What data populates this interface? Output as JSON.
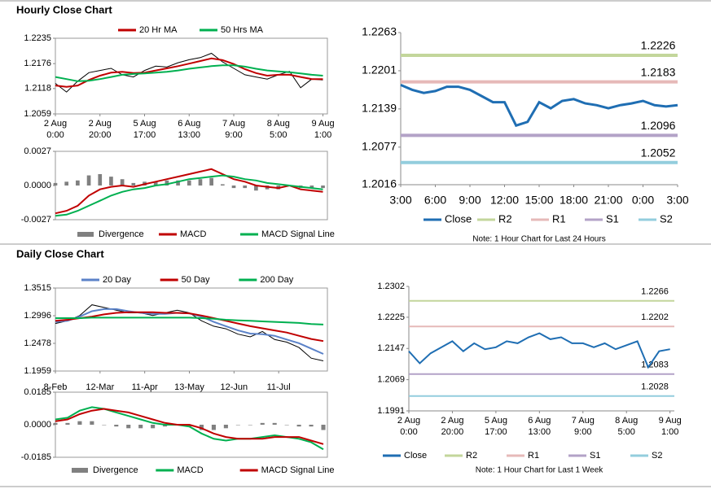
{
  "headings": [
    "Hourly Close Chart",
    "Daily Close Chart"
  ],
  "chart_data": [
    {
      "type": "line",
      "legend": "top",
      "x": [
        0,
        5,
        10,
        15,
        20,
        25,
        30,
        35,
        40,
        45,
        50,
        55,
        60,
        65,
        70,
        75,
        80,
        85,
        90,
        95,
        100,
        105,
        110,
        115,
        120
      ],
      "xlim": [
        0,
        122
      ],
      "ylim": [
        1.2059,
        1.2235
      ],
      "yticks": [
        1.2059,
        1.2118,
        1.2176,
        1.2235
      ],
      "xticks": [
        {
          "value": 0,
          "label": [
            "2 Aug",
            "0:00"
          ]
        },
        {
          "value": 20,
          "label": [
            "2 Aug",
            "20:00"
          ]
        },
        {
          "value": 40,
          "label": [
            "5 Aug",
            "17:00"
          ]
        },
        {
          "value": 60,
          "label": [
            "6 Aug",
            "13:00"
          ]
        },
        {
          "value": 80,
          "label": [
            "7 Aug",
            "9:00"
          ]
        },
        {
          "value": 100,
          "label": [
            "8 Aug",
            "5:00"
          ]
        },
        {
          "value": 120,
          "label": [
            "9 Aug",
            "1:00"
          ]
        }
      ],
      "series": [
        {
          "color": "#000000",
          "values": [
            1.213,
            1.211,
            1.2135,
            1.2155,
            1.216,
            1.2165,
            1.215,
            1.2145,
            1.216,
            1.217,
            1.2168,
            1.2178,
            1.2185,
            1.219,
            1.22,
            1.218,
            1.2165,
            1.215,
            1.2145,
            1.214,
            1.215,
            1.2158,
            1.212,
            1.214,
            1.2138
          ]
        },
        {
          "name": "20 Hr MA",
          "color": "#c00000",
          "values": [
            1.2125,
            1.2122,
            1.2125,
            1.2138,
            1.2148,
            1.2155,
            1.2157,
            1.2154,
            1.2155,
            1.216,
            1.2165,
            1.217,
            1.2176,
            1.2182,
            1.2188,
            1.2184,
            1.2175,
            1.2163,
            1.2154,
            1.2148,
            1.215,
            1.215,
            1.2145,
            1.214,
            1.214
          ]
        },
        {
          "name": "50 Hrs MA",
          "color": "#00b050",
          "values": [
            1.2145,
            1.214,
            1.2135,
            1.2136,
            1.214,
            1.2145,
            1.215,
            1.2152,
            1.2153,
            1.2155,
            1.2157,
            1.216,
            1.2164,
            1.2167,
            1.217,
            1.2172,
            1.2172,
            1.2169,
            1.2164,
            1.216,
            1.2158,
            1.2156,
            1.2153,
            1.215,
            1.2148
          ]
        }
      ]
    },
    {
      "type": "line",
      "legend": "bottom",
      "x": [
        0,
        5,
        10,
        15,
        20,
        25,
        30,
        35,
        40,
        45,
        50,
        55,
        60,
        65,
        70,
        75,
        80,
        85,
        90,
        95,
        100,
        105,
        110,
        115,
        120
      ],
      "xlim": [
        0,
        122
      ],
      "ylim": [
        -0.0027,
        0.0027
      ],
      "yticks": [
        0.0027,
        {
          "value": 0,
          "label": "0.0000"
        },
        -0.0027
      ],
      "series": [
        {
          "name": "Divergence",
          "kind": "bar",
          "color": "#808080",
          "values": [
            0.0002,
            0.0003,
            0.0004,
            0.0008,
            0.0009,
            0.0007,
            0.0005,
            0.0002,
            0.0003,
            0.0003,
            0.0004,
            0.0004,
            0.0004,
            0.0005,
            0.0006,
            0.0001,
            -0.0002,
            -0.0002,
            -0.0004,
            -0.0003,
            -0.0003,
            0.0,
            -0.0002,
            -0.0002,
            -0.0002
          ]
        },
        {
          "name": "MACD",
          "color": "#c00000",
          "values": [
            -0.0022,
            -0.002,
            -0.0016,
            -0.0008,
            -0.0003,
            -0.0001,
            0.0,
            -0.0001,
            0.0001,
            0.0003,
            0.0005,
            0.0007,
            0.0009,
            0.0011,
            0.0013,
            0.0009,
            0.0005,
            0.0003,
            0.0,
            -0.0001,
            -0.0002,
            0.0,
            -0.0003,
            -0.0004,
            -0.0005
          ]
        },
        {
          "name": "MACD Signal Line",
          "color": "#00b050",
          "values": [
            -0.0024,
            -0.0023,
            -0.002,
            -0.0016,
            -0.0012,
            -0.0008,
            -0.0005,
            -0.0003,
            -0.0002,
            0.0,
            0.0001,
            0.0003,
            0.0005,
            0.0006,
            0.0007,
            0.0008,
            0.0007,
            0.0005,
            0.0004,
            0.0002,
            0.0001,
            0.0,
            -0.0001,
            -0.0002,
            -0.0003
          ]
        }
      ]
    },
    {
      "type": "line",
      "legend": "bottom",
      "note": "Note: 1 Hour Chart for Last 24 Hours",
      "x": [
        0,
        1,
        2,
        3,
        4,
        5,
        6,
        7,
        8,
        9,
        10,
        11,
        12,
        13,
        14,
        15,
        16,
        17,
        18,
        19,
        20,
        21,
        22,
        23,
        24
      ],
      "xlim": [
        0,
        24
      ],
      "ylim": [
        1.2016,
        1.2263
      ],
      "yticks": [
        1.2016,
        1.2077,
        1.2139,
        1.2201,
        1.2263
      ],
      "xticks": [
        {
          "value": 0,
          "label": "3:00"
        },
        {
          "value": 3,
          "label": "6:00"
        },
        {
          "value": 6,
          "label": "9:00"
        },
        {
          "value": 9,
          "label": "12:00"
        },
        {
          "value": 12,
          "label": "15:00"
        },
        {
          "value": 15,
          "label": "18:00"
        },
        {
          "value": 18,
          "label": "21:00"
        },
        {
          "value": 21,
          "label": "0:00"
        },
        {
          "value": 24,
          "label": "3:00"
        }
      ],
      "series": [
        {
          "name": "Close",
          "color": "#1f6eb3",
          "values": [
            1.2178,
            1.217,
            1.2165,
            1.2168,
            1.2175,
            1.2175,
            1.217,
            1.216,
            1.215,
            1.215,
            1.2112,
            1.2118,
            1.215,
            1.214,
            1.2152,
            1.2155,
            1.2148,
            1.2145,
            1.214,
            1.2145,
            1.2148,
            1.2152,
            1.2145,
            1.2143,
            1.2145
          ]
        }
      ],
      "levels": [
        {
          "name": "R2",
          "value": 1.2226,
          "color": "#c3d69b"
        },
        {
          "name": "R1",
          "value": 1.2183,
          "color": "#e6b9b8"
        },
        {
          "name": "S1",
          "value": 1.2096,
          "color": "#b3a2c7"
        },
        {
          "name": "S2",
          "value": 1.2052,
          "color": "#93cddd"
        }
      ]
    },
    {
      "type": "line",
      "legend": "top",
      "x": [
        0,
        6,
        12,
        18,
        24,
        30,
        36,
        42,
        48,
        54,
        60,
        66,
        72,
        78,
        84,
        90,
        96,
        102,
        108,
        114,
        120,
        126,
        132
      ],
      "xlim": [
        0,
        134
      ],
      "ylim": [
        1.1959,
        1.3515
      ],
      "yticks": [
        1.1959,
        1.2478,
        1.2996,
        1.3515
      ],
      "xticks": [
        {
          "value": 0,
          "label": "8-Feb"
        },
        {
          "value": 22,
          "label": "12-Mar"
        },
        {
          "value": 44,
          "label": "11-Apr"
        },
        {
          "value": 66,
          "label": "13-May"
        },
        {
          "value": 88,
          "label": "12-Jun"
        },
        {
          "value": 110,
          "label": "11-Jul"
        }
      ],
      "series": [
        {
          "color": "#000000",
          "values": [
            1.285,
            1.29,
            1.3,
            1.32,
            1.315,
            1.31,
            1.305,
            1.305,
            1.3,
            1.305,
            1.31,
            1.305,
            1.29,
            1.28,
            1.275,
            1.265,
            1.26,
            1.27,
            1.255,
            1.25,
            1.24,
            1.22,
            1.215
          ]
        },
        {
          "name": "20 Day",
          "color": "#5b82c8",
          "values": [
            1.288,
            1.29,
            1.298,
            1.308,
            1.312,
            1.312,
            1.308,
            1.305,
            1.303,
            1.303,
            1.305,
            1.304,
            1.298,
            1.288,
            1.28,
            1.272,
            1.266,
            1.265,
            1.262,
            1.255,
            1.248,
            1.238,
            1.228
          ]
        },
        {
          "name": "50 Day",
          "color": "#c00000",
          "values": [
            1.29,
            1.292,
            1.295,
            1.298,
            1.302,
            1.305,
            1.306,
            1.306,
            1.306,
            1.305,
            1.305,
            1.304,
            1.3,
            1.295,
            1.29,
            1.285,
            1.28,
            1.276,
            1.272,
            1.268,
            1.262,
            1.256,
            1.252
          ]
        },
        {
          "name": "200 Day",
          "color": "#00b050",
          "values": [
            1.295,
            1.295,
            1.295,
            1.296,
            1.296,
            1.296,
            1.296,
            1.296,
            1.296,
            1.296,
            1.296,
            1.296,
            1.295,
            1.294,
            1.292,
            1.291,
            1.29,
            1.289,
            1.288,
            1.287,
            1.286,
            1.284,
            1.283
          ]
        }
      ]
    },
    {
      "type": "line",
      "legend": "bottom",
      "x": [
        0,
        6,
        12,
        18,
        24,
        30,
        36,
        42,
        48,
        54,
        60,
        66,
        72,
        78,
        84,
        90,
        96,
        102,
        108,
        114,
        120,
        126,
        132
      ],
      "xlim": [
        0,
        134
      ],
      "ylim": [
        -0.0185,
        0.0185
      ],
      "yticks": [
        0.0185,
        {
          "value": 0,
          "label": "0.0000"
        },
        -0.0185
      ],
      "series": [
        {
          "name": "Divergence",
          "kind": "bar",
          "color": "#808080",
          "values": [
            0.001,
            0.001,
            0.002,
            0.002,
            0.0,
            -0.001,
            -0.002,
            -0.002,
            -0.002,
            -0.001,
            0.0,
            -0.001,
            -0.003,
            -0.003,
            -0.002,
            0.0,
            0.0,
            0.001,
            0.001,
            0.0,
            -0.001,
            -0.001,
            -0.003
          ]
        },
        {
          "name": "MACD",
          "color": "#00b050",
          "values": [
            0.003,
            0.004,
            0.008,
            0.01,
            0.009,
            0.007,
            0.005,
            0.003,
            0.001,
            0.0,
            0.0,
            -0.001,
            -0.005,
            -0.008,
            -0.009,
            -0.008,
            -0.008,
            -0.007,
            -0.006,
            -0.007,
            -0.008,
            -0.01,
            -0.014
          ]
        },
        {
          "name": "MACD Signal Line",
          "color": "#c00000",
          "values": [
            0.002,
            0.003,
            0.006,
            0.008,
            0.009,
            0.008,
            0.007,
            0.005,
            0.003,
            0.001,
            0.0,
            0.0,
            -0.002,
            -0.005,
            -0.007,
            -0.008,
            -0.008,
            -0.008,
            -0.007,
            -0.007,
            -0.007,
            -0.009,
            -0.011
          ]
        }
      ]
    },
    {
      "type": "line",
      "legend": "bottom",
      "note": "Note: 1 Hour Chart for Last 1 Week",
      "x": [
        0,
        5,
        10,
        15,
        20,
        25,
        30,
        35,
        40,
        45,
        50,
        55,
        60,
        65,
        70,
        75,
        80,
        85,
        90,
        95,
        100,
        105,
        110,
        115,
        120
      ],
      "xlim": [
        0,
        122
      ],
      "ylim": [
        1.1991,
        1.2302
      ],
      "yticks": [
        1.1991,
        1.2069,
        1.2147,
        1.2225,
        1.2302
      ],
      "xticks": [
        {
          "value": 0,
          "label": [
            "2 Aug",
            "0:00"
          ]
        },
        {
          "value": 20,
          "label": [
            "2 Aug",
            "20:00"
          ]
        },
        {
          "value": 40,
          "label": [
            "5 Aug",
            "17:00"
          ]
        },
        {
          "value": 60,
          "label": [
            "6 Aug",
            "13:00"
          ]
        },
        {
          "value": 80,
          "label": [
            "7 Aug",
            "9:00"
          ]
        },
        {
          "value": 100,
          "label": [
            "8 Aug",
            "5:00"
          ]
        },
        {
          "value": 120,
          "label": [
            "9 Aug",
            "1:00"
          ]
        }
      ],
      "series": [
        {
          "name": "Close",
          "color": "#1f6eb3",
          "values": [
            1.214,
            1.211,
            1.2135,
            1.215,
            1.2165,
            1.214,
            1.216,
            1.2145,
            1.215,
            1.2165,
            1.216,
            1.2175,
            1.2185,
            1.217,
            1.2175,
            1.216,
            1.216,
            1.215,
            1.216,
            1.2145,
            1.2155,
            1.2165,
            1.21,
            1.214,
            1.2145
          ]
        }
      ],
      "levels": [
        {
          "name": "R2",
          "value": 1.2266,
          "color": "#c3d69b"
        },
        {
          "name": "R1",
          "value": 1.2202,
          "color": "#e6b9b8"
        },
        {
          "name": "S1",
          "value": 1.2083,
          "color": "#b3a2c7"
        },
        {
          "name": "S2",
          "value": 1.2028,
          "color": "#93cddd"
        }
      ]
    }
  ]
}
